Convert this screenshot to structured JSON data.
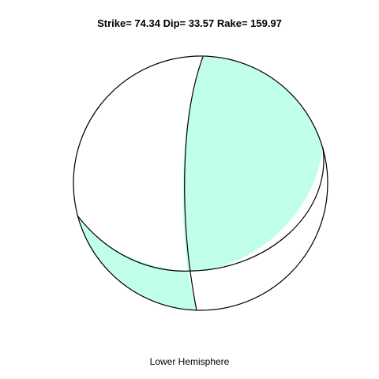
{
  "title": "Strike= 74.34 Dip= 33.57 Rake= 159.97",
  "footer": "Lower Hemisphere",
  "mechanism": {
    "strike": 74.34,
    "dip": 33.57,
    "rake": 159.97
  },
  "colors": {
    "compressional_fill": "#c1ffe9",
    "dilatational_fill": "#ffffff",
    "outline": "#000000"
  }
}
